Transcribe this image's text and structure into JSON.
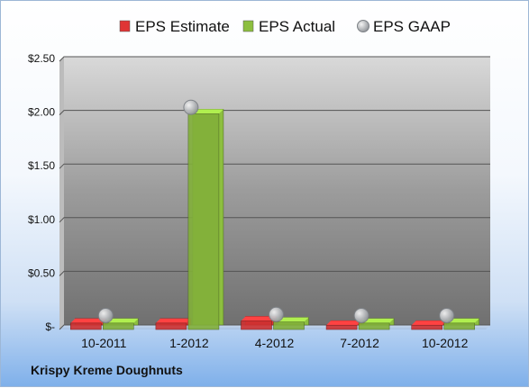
{
  "chart_data": {
    "type": "bar",
    "categories": [
      "10-2011",
      "1-2012",
      "4-2012",
      "7-2012",
      "10-2012"
    ],
    "series": [
      {
        "name": "EPS Estimate",
        "kind": "bar",
        "color": "#e03535",
        "values": [
          0.06,
          0.06,
          0.08,
          0.04,
          0.04
        ]
      },
      {
        "name": "EPS Actual",
        "kind": "bar",
        "color": "#8dbf3f",
        "values": [
          0.06,
          2.01,
          0.07,
          0.06,
          0.06
        ]
      },
      {
        "name": "EPS GAAP",
        "kind": "marker",
        "color": "#b9bdc3",
        "values": [
          0.08,
          2.02,
          0.09,
          0.08,
          0.08
        ]
      }
    ],
    "y_ticks": [
      "$-",
      "$0.50",
      "$1.00",
      "$1.50",
      "$2.00",
      "$2.50"
    ],
    "y_tick_values": [
      0,
      0.5,
      1.0,
      1.5,
      2.0,
      2.5
    ],
    "ylim": [
      0,
      2.5
    ],
    "grid": true,
    "legend": "top",
    "company": "Krispy Kreme Doughnuts"
  }
}
